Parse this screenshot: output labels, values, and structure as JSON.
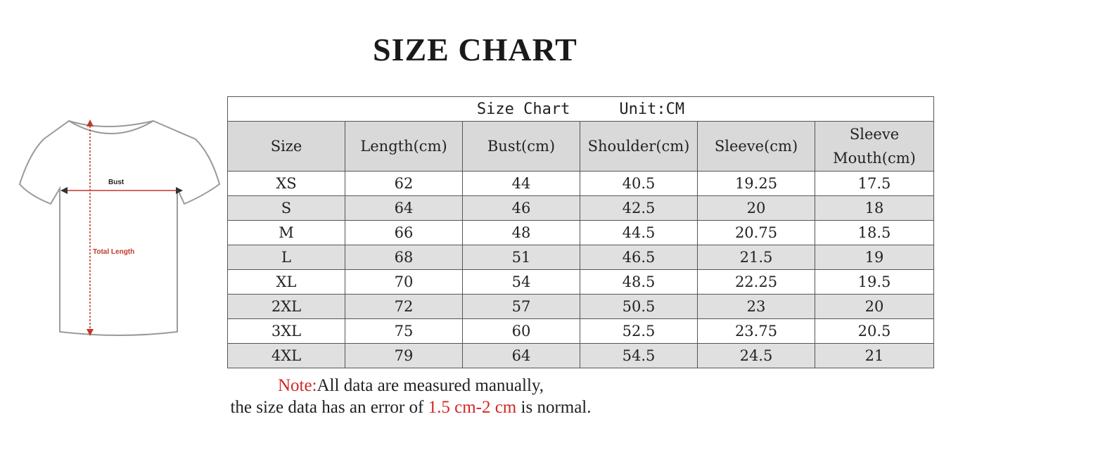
{
  "title": "SIZE CHART",
  "diagram": {
    "bust_label": "Bust",
    "length_label": "Total Length",
    "line_color": "#c0392b"
  },
  "table": {
    "caption": "Size Chart",
    "unit": "Unit:CM",
    "headers": [
      "Size",
      "Length(cm)",
      "Bust(cm)",
      "Shoulder(cm)",
      "Sleeve(cm)",
      "Sleeve Mouth(cm)"
    ],
    "rows": [
      [
        "XS",
        "62",
        "44",
        "40.5",
        "19.25",
        "17.5"
      ],
      [
        "S",
        "64",
        "46",
        "42.5",
        "20",
        "18"
      ],
      [
        "M",
        "66",
        "48",
        "44.5",
        "20.75",
        "18.5"
      ],
      [
        "L",
        "68",
        "51",
        "46.5",
        "21.5",
        "19"
      ],
      [
        "XL",
        "70",
        "54",
        "48.5",
        "22.25",
        "19.5"
      ],
      [
        "2XL",
        "72",
        "57",
        "50.5",
        "23",
        "20"
      ],
      [
        "3XL",
        "75",
        "60",
        "52.5",
        "23.75",
        "20.5"
      ],
      [
        "4XL",
        "79",
        "64",
        "54.5",
        "24.5",
        "21"
      ]
    ]
  },
  "note": {
    "label": "Note:",
    "line1": "All data are measured manually,",
    "line2_prefix": "the size data has an error of ",
    "line2_range": "1.5 cm-2 cm",
    "line2_suffix": " is normal.",
    "accent_color": "#d32626"
  }
}
